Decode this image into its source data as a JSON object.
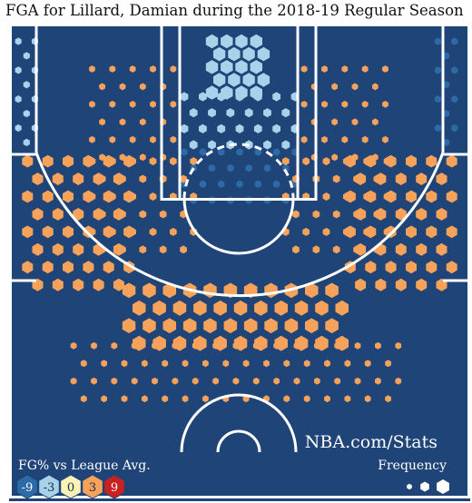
{
  "title": "FGA for Lillard, Damian during the 2018-19 Regular Season",
  "watermark": "NBA.com/Stats",
  "legend": {
    "fg_title": "FG% vs League Avg.",
    "fg_scale": [
      {
        "label": "-9",
        "color": "#2c6aa8",
        "text_color": "#ffffff"
      },
      {
        "label": "-3",
        "color": "#a7d2ea",
        "text_color": "#1a2a44"
      },
      {
        "label": "0",
        "color": "#fbf2b8",
        "text_color": "#1a2a44"
      },
      {
        "label": "3",
        "color": "#f7a25b",
        "text_color": "#1a2a44"
      },
      {
        "label": "9",
        "color": "#c7221f",
        "text_color": "#ffffff"
      }
    ],
    "freq_title": "Frequency"
  },
  "colors": {
    "court": "#1f4477",
    "lines": "#ffffff",
    "cold": "#2c6aa8",
    "cool": "#a7d2ea",
    "warm": "#f7a25b"
  },
  "chart_data": {
    "type": "hexbin",
    "title": "FGA for Lillard, Damian during the 2018-19 Regular Season",
    "color_scale": {
      "metric": "FG% vs League Avg.",
      "ticks": [
        -9,
        -3,
        0,
        3,
        9
      ]
    },
    "size_scale": {
      "metric": "Frequency"
    },
    "units": "feet from basket (x: -25 to 25, y: -5 to 42)",
    "zones": [
      {
        "name": "restricted-area",
        "x0": -3,
        "x1": 3,
        "y0": -3,
        "y1": 3,
        "spacing": 1.6,
        "size": 0.95,
        "fg_diff": -2
      },
      {
        "name": "paint-low",
        "x0": -6,
        "x1": 6,
        "y0": 3,
        "y1": 9,
        "spacing": 2.0,
        "size": 0.5,
        "fg_diff": -2
      },
      {
        "name": "paint-high",
        "x0": -6,
        "x1": 6,
        "y0": 9,
        "y1": 15,
        "spacing": 2.0,
        "size": 0.42,
        "fg_diff": -7
      },
      {
        "name": "short-midrange-left",
        "x0": -16,
        "x1": -7,
        "y0": 0,
        "y1": 10,
        "spacing": 2.2,
        "size": 0.35,
        "fg_diff": 4
      },
      {
        "name": "short-midrange-right",
        "x0": 7,
        "x1": 16,
        "y0": 0,
        "y1": 10,
        "spacing": 2.2,
        "size": 0.35,
        "fg_diff": 4
      },
      {
        "name": "elbow-left",
        "x0": -16,
        "x1": -5,
        "y0": 10,
        "y1": 20,
        "spacing": 2.2,
        "size": 0.4,
        "fg_diff": 4
      },
      {
        "name": "elbow-right",
        "x0": 5,
        "x1": 16,
        "y0": 10,
        "y1": 20,
        "spacing": 2.2,
        "size": 0.4,
        "fg_diff": 4
      },
      {
        "name": "left-corner-three",
        "x0": -24,
        "x1": -21.5,
        "y0": -3,
        "y1": 9,
        "spacing": 1.8,
        "size": 0.45,
        "fg_diff": -3
      },
      {
        "name": "right-corner-three",
        "x0": 21.5,
        "x1": 24,
        "y0": -3,
        "y1": 9,
        "spacing": 1.8,
        "size": 0.45,
        "fg_diff": -7
      },
      {
        "name": "left-wing-three",
        "x0": -23,
        "x1": -12,
        "y0": 10,
        "y1": 24,
        "spacing": 2.2,
        "size": 0.62,
        "fg_diff": 4
      },
      {
        "name": "right-wing-three",
        "x0": 12,
        "x1": 23,
        "y0": 10,
        "y1": 24,
        "spacing": 2.2,
        "size": 0.62,
        "fg_diff": 4
      },
      {
        "name": "top-key-three",
        "x0": -12,
        "x1": 12,
        "y0": 24,
        "y1": 30,
        "spacing": 2.2,
        "size": 0.75,
        "fg_diff": 4
      },
      {
        "name": "deep-three",
        "x0": -18,
        "x1": 18,
        "y0": 30,
        "y1": 36,
        "spacing": 2.2,
        "size": 0.35,
        "fg_diff": 4
      }
    ]
  }
}
